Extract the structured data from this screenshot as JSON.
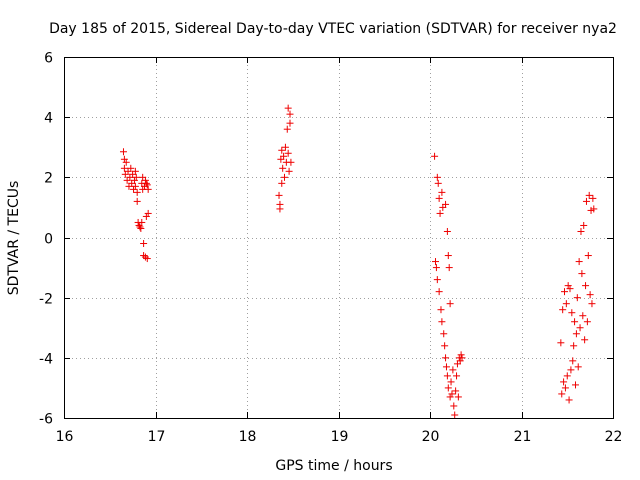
{
  "chart_data": {
    "type": "scatter",
    "title": "Day 185 of 2015, Sidereal Day-to-day VTEC variation (SDTVAR) for receiver nya2",
    "xlabel": "GPS time / hours",
    "ylabel": "SDTVAR / TECUs",
    "xlim": [
      16,
      22
    ],
    "ylim": [
      -6,
      6
    ],
    "xticks": [
      16,
      17,
      18,
      19,
      20,
      21,
      22
    ],
    "yticks": [
      -6,
      -4,
      -2,
      0,
      2,
      4,
      6
    ],
    "grid": true,
    "marker": "+",
    "color": "#ee0000",
    "series": [
      {
        "name": "nya2",
        "points": [
          [
            16.65,
            2.85
          ],
          [
            16.66,
            2.6
          ],
          [
            16.66,
            2.3
          ],
          [
            16.67,
            2.1
          ],
          [
            16.68,
            2.5
          ],
          [
            16.69,
            1.9
          ],
          [
            16.7,
            2.2
          ],
          [
            16.71,
            1.7
          ],
          [
            16.72,
            2.0
          ],
          [
            16.73,
            2.3
          ],
          [
            16.74,
            1.8
          ],
          [
            16.75,
            2.1
          ],
          [
            16.76,
            1.6
          ],
          [
            16.77,
            1.9
          ],
          [
            16.78,
            2.2
          ],
          [
            16.78,
            1.7
          ],
          [
            16.79,
            2.0
          ],
          [
            16.8,
            1.5
          ],
          [
            16.8,
            1.2
          ],
          [
            16.81,
            0.5
          ],
          [
            16.82,
            0.4
          ],
          [
            16.83,
            0.35
          ],
          [
            16.84,
            0.3
          ],
          [
            16.85,
            0.5
          ],
          [
            16.85,
            1.8
          ],
          [
            16.86,
            1.6
          ],
          [
            16.86,
            2.0
          ],
          [
            16.87,
            -0.2
          ],
          [
            16.87,
            -0.6
          ],
          [
            16.88,
            1.7
          ],
          [
            16.89,
            1.9
          ],
          [
            16.89,
            -0.65
          ],
          [
            16.9,
            1.8
          ],
          [
            16.9,
            0.7
          ],
          [
            16.91,
            -0.7
          ],
          [
            16.91,
            1.75
          ],
          [
            16.92,
            0.8
          ],
          [
            16.92,
            1.6
          ],
          [
            18.35,
            1.4
          ],
          [
            18.36,
            1.1
          ],
          [
            18.36,
            0.95
          ],
          [
            18.37,
            2.6
          ],
          [
            18.38,
            2.9
          ],
          [
            18.38,
            1.8
          ],
          [
            18.39,
            2.3
          ],
          [
            18.4,
            2.7
          ],
          [
            18.41,
            2.0
          ],
          [
            18.42,
            3.0
          ],
          [
            18.43,
            2.5
          ],
          [
            18.44,
            3.6
          ],
          [
            18.45,
            4.3
          ],
          [
            18.45,
            2.8
          ],
          [
            18.46,
            2.2
          ],
          [
            18.47,
            4.1
          ],
          [
            18.47,
            3.8
          ],
          [
            18.48,
            2.5
          ],
          [
            20.05,
            2.7
          ],
          [
            20.06,
            -0.8
          ],
          [
            20.07,
            -1.0
          ],
          [
            20.08,
            2.0
          ],
          [
            20.08,
            -1.4
          ],
          [
            20.09,
            1.8
          ],
          [
            20.1,
            -1.8
          ],
          [
            20.1,
            1.3
          ],
          [
            20.11,
            0.8
          ],
          [
            20.12,
            -2.4
          ],
          [
            20.13,
            1.5
          ],
          [
            20.13,
            -2.8
          ],
          [
            20.14,
            1.0
          ],
          [
            20.15,
            -3.2
          ],
          [
            20.16,
            -3.6
          ],
          [
            20.17,
            1.1
          ],
          [
            20.17,
            -4.0
          ],
          [
            20.18,
            -4.3
          ],
          [
            20.19,
            0.2
          ],
          [
            20.19,
            -4.6
          ],
          [
            20.2,
            -0.6
          ],
          [
            20.2,
            -5.0
          ],
          [
            20.21,
            -1.0
          ],
          [
            20.22,
            -5.3
          ],
          [
            20.22,
            -2.2
          ],
          [
            20.23,
            -4.8
          ],
          [
            20.24,
            -5.2
          ],
          [
            20.25,
            -4.4
          ],
          [
            20.26,
            -5.6
          ],
          [
            20.27,
            -5.9
          ],
          [
            20.28,
            -5.1
          ],
          [
            20.29,
            -4.6
          ],
          [
            20.3,
            -4.2
          ],
          [
            20.31,
            -5.3
          ],
          [
            20.32,
            -4.0
          ],
          [
            20.33,
            -4.1
          ],
          [
            20.34,
            -3.9
          ],
          [
            20.35,
            -4.0
          ],
          [
            21.43,
            -3.5
          ],
          [
            21.44,
            -5.2
          ],
          [
            21.45,
            -2.4
          ],
          [
            21.46,
            -4.8
          ],
          [
            21.47,
            -1.8
          ],
          [
            21.48,
            -5.0
          ],
          [
            21.49,
            -2.2
          ],
          [
            21.5,
            -4.6
          ],
          [
            21.51,
            -1.6
          ],
          [
            21.52,
            -5.4
          ],
          [
            21.53,
            -1.7
          ],
          [
            21.54,
            -4.4
          ],
          [
            21.55,
            -2.5
          ],
          [
            21.56,
            -4.1
          ],
          [
            21.57,
            -3.6
          ],
          [
            21.58,
            -2.8
          ],
          [
            21.59,
            -4.9
          ],
          [
            21.6,
            -3.2
          ],
          [
            21.61,
            -2.0
          ],
          [
            21.62,
            -4.3
          ],
          [
            21.63,
            -0.8
          ],
          [
            21.64,
            -3.0
          ],
          [
            21.65,
            0.2
          ],
          [
            21.66,
            -1.2
          ],
          [
            21.67,
            -2.6
          ],
          [
            21.68,
            0.4
          ],
          [
            21.69,
            -3.4
          ],
          [
            21.7,
            -1.6
          ],
          [
            21.71,
            1.2
          ],
          [
            21.72,
            -2.8
          ],
          [
            21.73,
            -0.6
          ],
          [
            21.74,
            1.4
          ],
          [
            21.75,
            -1.9
          ],
          [
            21.76,
            0.9
          ],
          [
            21.77,
            -2.2
          ],
          [
            21.78,
            1.3
          ],
          [
            21.79,
            0.95
          ]
        ]
      }
    ]
  }
}
